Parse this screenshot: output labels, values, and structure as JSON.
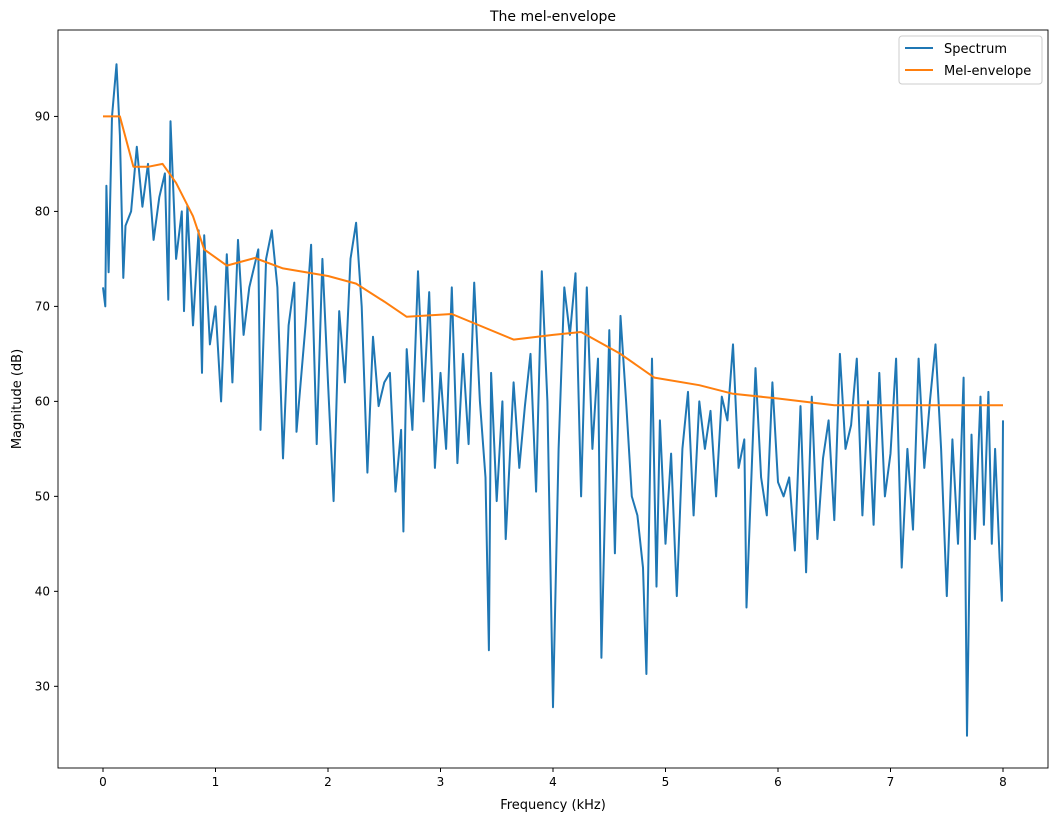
{
  "chart_data": {
    "type": "line",
    "title": "The mel-envelope",
    "xlabel": "Frequency (kHz)",
    "ylabel": "Magnitude (dB)",
    "xlim": [
      -0.4,
      8.4
    ],
    "ylim": [
      21.4,
      99.1
    ],
    "xticks": [
      0,
      1,
      2,
      3,
      4,
      5,
      6,
      7,
      8
    ],
    "yticks": [
      30,
      40,
      50,
      60,
      70,
      80,
      90
    ],
    "grid": false,
    "legend_position": "top-right",
    "series": [
      {
        "name": "Spectrum",
        "color": "#1f77b4",
        "x": [
          0,
          0.02,
          0.03,
          0.05,
          0.08,
          0.12,
          0.15,
          0.18,
          0.2,
          0.25,
          0.3,
          0.35,
          0.4,
          0.45,
          0.5,
          0.55,
          0.58,
          0.6,
          0.65,
          0.7,
          0.72,
          0.75,
          0.8,
          0.85,
          0.88,
          0.9,
          0.95,
          1.0,
          1.05,
          1.1,
          1.15,
          1.2,
          1.25,
          1.3,
          1.38,
          1.4,
          1.45,
          1.5,
          1.55,
          1.6,
          1.65,
          1.7,
          1.72,
          1.8,
          1.85,
          1.9,
          1.95,
          2.0,
          2.05,
          2.1,
          2.15,
          2.2,
          2.25,
          2.3,
          2.35,
          2.4,
          2.45,
          2.5,
          2.55,
          2.6,
          2.65,
          2.67,
          2.7,
          2.75,
          2.8,
          2.85,
          2.9,
          2.95,
          3.0,
          3.05,
          3.1,
          3.15,
          3.2,
          3.25,
          3.3,
          3.35,
          3.4,
          3.43,
          3.45,
          3.5,
          3.55,
          3.58,
          3.65,
          3.7,
          3.75,
          3.8,
          3.85,
          3.9,
          3.95,
          4.0,
          4.05,
          4.1,
          4.15,
          4.2,
          4.25,
          4.3,
          4.35,
          4.4,
          4.43,
          4.5,
          4.55,
          4.6,
          4.65,
          4.7,
          4.75,
          4.8,
          4.83,
          4.88,
          4.92,
          4.95,
          5.0,
          5.05,
          5.1,
          5.15,
          5.2,
          5.25,
          5.3,
          5.35,
          5.4,
          5.45,
          5.5,
          5.55,
          5.6,
          5.65,
          5.7,
          5.72,
          5.8,
          5.85,
          5.9,
          5.95,
          6.0,
          6.05,
          6.1,
          6.15,
          6.2,
          6.25,
          6.3,
          6.35,
          6.4,
          6.45,
          6.5,
          6.55,
          6.6,
          6.65,
          6.7,
          6.75,
          6.8,
          6.85,
          6.9,
          6.95,
          7.0,
          7.05,
          7.1,
          7.15,
          7.2,
          7.25,
          7.3,
          7.35,
          7.4,
          7.45,
          7.5,
          7.55,
          7.6,
          7.65,
          7.68,
          7.72,
          7.75,
          7.8,
          7.83,
          7.87,
          7.9,
          7.93,
          7.97,
          7.99,
          8.0
        ],
        "y": [
          72,
          70,
          82.7,
          73.6,
          90,
          95.5,
          88,
          73,
          78.5,
          80,
          86.8,
          80.5,
          85,
          77,
          81.5,
          84,
          70.7,
          89.5,
          75,
          80,
          69.5,
          80.6,
          68,
          78,
          63,
          77.5,
          66,
          70,
          60,
          75.5,
          62,
          77,
          67,
          72,
          76,
          57,
          75,
          78,
          72,
          54,
          68,
          72.5,
          56.8,
          68,
          76.5,
          55.5,
          75,
          62,
          49.5,
          69.5,
          62,
          75,
          78.8,
          70,
          52.5,
          66.8,
          59.5,
          62,
          63,
          50.5,
          57,
          46.3,
          65.5,
          57,
          73.7,
          60,
          71.5,
          53,
          63,
          55,
          72,
          53.5,
          65,
          55.5,
          72.5,
          60,
          52,
          33.8,
          63,
          49.5,
          60,
          45.5,
          62,
          53,
          59.5,
          65,
          50.5,
          73.7,
          60,
          27.8,
          55,
          72,
          67,
          73.5,
          50,
          72,
          55,
          64.5,
          33,
          67.5,
          44,
          69,
          60,
          50,
          48,
          42.5,
          31.3,
          64.5,
          40.5,
          58,
          45,
          54.5,
          39.5,
          55,
          61,
          48,
          60,
          55,
          59,
          50,
          60.5,
          58,
          66,
          53,
          56,
          38.3,
          63.5,
          52,
          48,
          62,
          51.5,
          50,
          52,
          44.3,
          59.5,
          42,
          60.5,
          45.5,
          54,
          58,
          47.5,
          65,
          55,
          57.5,
          64.5,
          48,
          60,
          47,
          63,
          50,
          54.5,
          64.5,
          42.5,
          55,
          46.5,
          64.5,
          53,
          60,
          66,
          55,
          39.5,
          56,
          45,
          62.5,
          24.8,
          56.5,
          45.5,
          60.5,
          47,
          61,
          45,
          55,
          43.5,
          39,
          58
        ]
      },
      {
        "name": "Mel-envelope",
        "color": "#ff7f0e",
        "x": [
          0,
          0.15,
          0.27,
          0.4,
          0.53,
          0.65,
          0.8,
          0.9,
          1.1,
          1.35,
          1.6,
          2.0,
          2.25,
          2.5,
          2.7,
          3.1,
          3.65,
          4.0,
          4.25,
          4.6,
          4.9,
          5.3,
          5.6,
          6.0,
          6.5,
          8.0
        ],
        "y": [
          90,
          90,
          84.7,
          84.7,
          85,
          83,
          79.5,
          76,
          74.3,
          75.1,
          74,
          73.2,
          72.4,
          70.5,
          68.9,
          69.2,
          66.5,
          67,
          67.3,
          65,
          62.5,
          61.7,
          60.8,
          60.3,
          59.6,
          59.6
        ]
      }
    ]
  }
}
